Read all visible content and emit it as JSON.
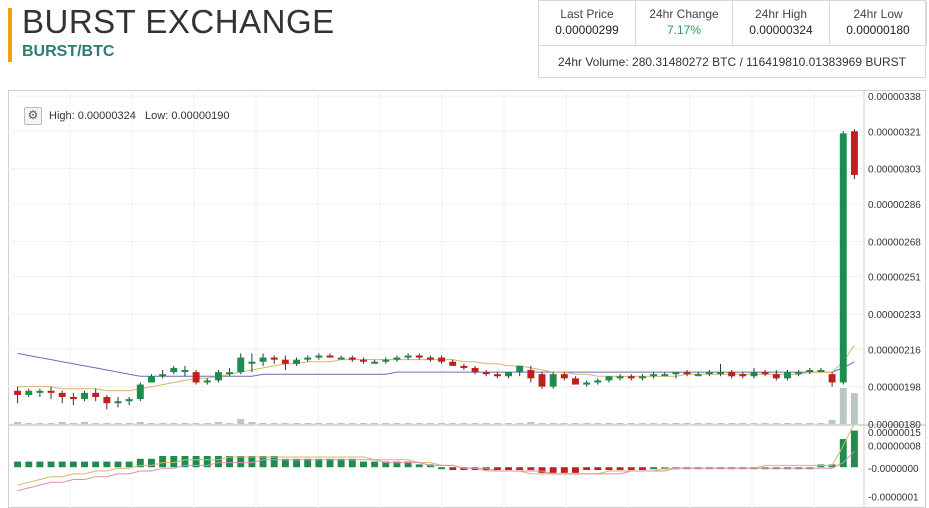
{
  "header": {
    "title": "BURST EXCHANGE",
    "pair": "BURST/BTC"
  },
  "stats": {
    "last_price_label": "Last Price",
    "last_price": "0.00000299",
    "change_label": "24hr Change",
    "change": "7.17%",
    "high_label": "24hr High",
    "high": "0.00000324",
    "low_label": "24hr Low",
    "low": "0.00000180",
    "volume_label": "24hr Volume:",
    "volume": "280.31480272 BTC / 116419810.01383969 BURST"
  },
  "chart_info": {
    "gear_icon": "gear-icon",
    "high_label": "High:",
    "high": "0.00000324",
    "low_label": "Low:",
    "low": "0.00000190"
  },
  "colors": {
    "up": "#1e8c4e",
    "down": "#c0201c",
    "volume": "#b9c6c4",
    "ma_slow": "#6b6fb3",
    "ma_fast": "#d9b46a",
    "macd_signal": "#d98fb0"
  },
  "chart_data": {
    "type": "candlestick",
    "y_ticks": [
      "0.00000180",
      "0.00000198",
      "0.00000216",
      "0.00000233",
      "0.00000251",
      "0.00000268",
      "0.00000286",
      "0.00000303",
      "0.00000321",
      "0.00000338"
    ],
    "ylim": [
      1.8e-06,
      3.38e-06
    ],
    "indicator_ticks": [
      "0.00000015",
      "0.00000008",
      "-0.0000000",
      "-0.0000001"
    ],
    "indicator_ylim": [
      -1.2e-07,
      1.5e-07
    ],
    "candles": [
      {
        "o": 196,
        "h": 198,
        "l": 190,
        "c": 194
      },
      {
        "o": 194,
        "h": 197,
        "l": 193,
        "c": 196
      },
      {
        "o": 195,
        "h": 197,
        "l": 193,
        "c": 196
      },
      {
        "o": 196,
        "h": 198,
        "l": 192,
        "c": 195
      },
      {
        "o": 195,
        "h": 196,
        "l": 190,
        "c": 193
      },
      {
        "o": 193,
        "h": 195,
        "l": 189,
        "c": 192
      },
      {
        "o": 192,
        "h": 196,
        "l": 191,
        "c": 195
      },
      {
        "o": 195,
        "h": 197,
        "l": 191,
        "c": 193
      },
      {
        "o": 193,
        "h": 194,
        "l": 187,
        "c": 190
      },
      {
        "o": 190,
        "h": 193,
        "l": 188,
        "c": 191
      },
      {
        "o": 191,
        "h": 193,
        "l": 189,
        "c": 192
      },
      {
        "o": 192,
        "h": 200,
        "l": 191,
        "c": 199
      },
      {
        "o": 200,
        "h": 204,
        "l": 200,
        "c": 203
      },
      {
        "o": 203,
        "h": 206,
        "l": 202,
        "c": 204
      },
      {
        "o": 205,
        "h": 208,
        "l": 204,
        "c": 207
      },
      {
        "o": 206,
        "h": 208,
        "l": 203,
        "c": 206
      },
      {
        "o": 205,
        "h": 206,
        "l": 199,
        "c": 200
      },
      {
        "o": 200,
        "h": 202,
        "l": 199,
        "c": 201
      },
      {
        "o": 201,
        "h": 206,
        "l": 200,
        "c": 205
      },
      {
        "o": 205,
        "h": 207,
        "l": 203,
        "c": 205
      },
      {
        "o": 205,
        "h": 214,
        "l": 204,
        "c": 212
      },
      {
        "o": 209,
        "h": 214,
        "l": 205,
        "c": 210
      },
      {
        "o": 210,
        "h": 214,
        "l": 208,
        "c": 212
      },
      {
        "o": 212,
        "h": 213,
        "l": 209,
        "c": 211
      },
      {
        "o": 211,
        "h": 213,
        "l": 206,
        "c": 209
      },
      {
        "o": 209,
        "h": 212,
        "l": 208,
        "c": 211
      },
      {
        "o": 211,
        "h": 213,
        "l": 210,
        "c": 212
      },
      {
        "o": 212,
        "h": 214,
        "l": 211,
        "c": 213
      },
      {
        "o": 213,
        "h": 214,
        "l": 212,
        "c": 212
      },
      {
        "o": 212,
        "h": 213,
        "l": 211,
        "c": 212
      },
      {
        "o": 212,
        "h": 213,
        "l": 210,
        "c": 211
      },
      {
        "o": 211,
        "h": 212,
        "l": 209,
        "c": 210
      },
      {
        "o": 210,
        "h": 211,
        "l": 209,
        "c": 210
      },
      {
        "o": 210,
        "h": 212,
        "l": 209,
        "c": 211
      },
      {
        "o": 211,
        "h": 213,
        "l": 210,
        "c": 212
      },
      {
        "o": 212,
        "h": 214,
        "l": 211,
        "c": 213
      },
      {
        "o": 213,
        "h": 214,
        "l": 211,
        "c": 212
      },
      {
        "o": 212,
        "h": 213,
        "l": 210,
        "c": 211
      },
      {
        "o": 212,
        "h": 213,
        "l": 209,
        "c": 210
      },
      {
        "o": 210,
        "h": 211,
        "l": 208,
        "c": 208
      },
      {
        "o": 208,
        "h": 209,
        "l": 206,
        "c": 207
      },
      {
        "o": 207,
        "h": 208,
        "l": 204,
        "c": 205
      },
      {
        "o": 205,
        "h": 206,
        "l": 203,
        "c": 204
      },
      {
        "o": 204,
        "h": 205,
        "l": 202,
        "c": 203
      },
      {
        "o": 203,
        "h": 205,
        "l": 202,
        "c": 205
      },
      {
        "o": 205,
        "h": 208,
        "l": 203,
        "c": 208
      },
      {
        "o": 206,
        "h": 208,
        "l": 200,
        "c": 202
      },
      {
        "o": 204,
        "h": 205,
        "l": 197,
        "c": 198
      },
      {
        "o": 198,
        "h": 205,
        "l": 197,
        "c": 204
      },
      {
        "o": 204,
        "h": 205,
        "l": 201,
        "c": 202
      },
      {
        "o": 202,
        "h": 203,
        "l": 199,
        "c": 199
      },
      {
        "o": 199,
        "h": 201,
        "l": 198,
        "c": 200
      },
      {
        "o": 200,
        "h": 202,
        "l": 199,
        "c": 201
      },
      {
        "o": 201,
        "h": 203,
        "l": 200,
        "c": 203
      },
      {
        "o": 202,
        "h": 204,
        "l": 201,
        "c": 203
      },
      {
        "o": 203,
        "h": 204,
        "l": 201,
        "c": 202
      },
      {
        "o": 202,
        "h": 204,
        "l": 201,
        "c": 203
      },
      {
        "o": 203,
        "h": 205,
        "l": 202,
        "c": 204
      },
      {
        "o": 204,
        "h": 205,
        "l": 203,
        "c": 204
      },
      {
        "o": 204,
        "h": 205,
        "l": 202,
        "c": 205
      },
      {
        "o": 205,
        "h": 206,
        "l": 203,
        "c": 204
      },
      {
        "o": 204,
        "h": 205,
        "l": 203,
        "c": 204
      },
      {
        "o": 204,
        "h": 206,
        "l": 203,
        "c": 205
      },
      {
        "o": 205,
        "h": 209,
        "l": 203,
        "c": 205
      },
      {
        "o": 205,
        "h": 206,
        "l": 202,
        "c": 203
      },
      {
        "o": 204,
        "h": 205,
        "l": 202,
        "c": 203
      },
      {
        "o": 203,
        "h": 207,
        "l": 202,
        "c": 205
      },
      {
        "o": 205,
        "h": 206,
        "l": 203,
        "c": 204
      },
      {
        "o": 204,
        "h": 206,
        "l": 201,
        "c": 202
      },
      {
        "o": 202,
        "h": 206,
        "l": 201,
        "c": 205
      },
      {
        "o": 205,
        "h": 206,
        "l": 203,
        "c": 205
      },
      {
        "o": 205,
        "h": 207,
        "l": 204,
        "c": 206
      },
      {
        "o": 206,
        "h": 207,
        "l": 205,
        "c": 206
      },
      {
        "o": 204,
        "h": 205,
        "l": 198,
        "c": 200
      },
      {
        "o": 200,
        "h": 321,
        "l": 199,
        "c": 320
      },
      {
        "o": 321,
        "h": 322,
        "l": 298,
        "c": 300
      }
    ],
    "volumes": [
      2,
      1,
      1,
      1,
      2,
      1,
      2,
      1,
      1,
      1,
      1,
      2,
      1,
      1,
      1,
      1,
      1,
      1,
      2,
      1,
      5,
      2,
      1,
      1,
      1,
      1,
      1,
      1,
      1,
      1,
      1,
      1,
      1,
      1,
      1,
      1,
      1,
      1,
      1,
      1,
      1,
      1,
      1,
      1,
      1,
      1,
      2,
      1,
      1,
      1,
      1,
      1,
      1,
      1,
      1,
      1,
      1,
      1,
      1,
      1,
      1,
      1,
      1,
      1,
      1,
      1,
      1,
      1,
      1,
      1,
      1,
      1,
      1,
      4,
      35,
      30
    ],
    "ma_slow": [
      214,
      213,
      212,
      211,
      210,
      209,
      208,
      207,
      206,
      205,
      204,
      203,
      203,
      203,
      203,
      203,
      203,
      203,
      203,
      203,
      203,
      203,
      204,
      204,
      204,
      204,
      204,
      204,
      204,
      204,
      204,
      204,
      204,
      204,
      205,
      205,
      205,
      205,
      205,
      205,
      205,
      205,
      205,
      205,
      205,
      205,
      205,
      205,
      205,
      205,
      205,
      205,
      205,
      205,
      205,
      205,
      205,
      205,
      205,
      205,
      205,
      205,
      205,
      205,
      205,
      205,
      205,
      205,
      205,
      205,
      205,
      205,
      205,
      205,
      207,
      210
    ],
    "ma_fast": [
      198,
      198,
      198,
      198,
      197,
      197,
      197,
      197,
      196,
      196,
      196,
      197,
      198,
      199,
      200,
      201,
      202,
      202,
      203,
      204,
      205,
      206,
      207,
      208,
      209,
      209,
      210,
      210,
      210,
      211,
      211,
      211,
      211,
      211,
      211,
      211,
      211,
      211,
      211,
      211,
      210,
      210,
      209,
      209,
      208,
      208,
      207,
      206,
      205,
      205,
      204,
      204,
      203,
      203,
      203,
      203,
      203,
      203,
      203,
      203,
      204,
      204,
      204,
      204,
      204,
      204,
      204,
      204,
      204,
      204,
      204,
      205,
      205,
      205,
      210,
      218
    ],
    "macd_hist": [
      2,
      2,
      2,
      2,
      2,
      2,
      2,
      2,
      2,
      2,
      2,
      3,
      3,
      4,
      4,
      4,
      4,
      4,
      4,
      4,
      4,
      4,
      4,
      4,
      3,
      3,
      3,
      3,
      3,
      3,
      3,
      2,
      2,
      2,
      2,
      2,
      1,
      1,
      0,
      -1,
      -1,
      -1,
      -1,
      -1,
      -1,
      -1,
      -1,
      -2,
      -2,
      -2,
      -2,
      -1,
      -1,
      -1,
      -1,
      -1,
      -1,
      0,
      0,
      0,
      0,
      0,
      0,
      0,
      0,
      0,
      0,
      0,
      0,
      0,
      0,
      0,
      1,
      1,
      10,
      13
    ],
    "macd_line": [
      -6,
      -5,
      -4,
      -3,
      -3,
      -2,
      -2,
      -1,
      -1,
      0,
      0,
      1,
      1,
      2,
      2,
      3,
      3,
      3,
      3,
      4,
      4,
      4,
      4,
      4,
      4,
      4,
      4,
      4,
      4,
      4,
      4,
      4,
      3,
      3,
      3,
      3,
      2,
      2,
      1,
      1,
      0,
      0,
      -1,
      -1,
      -1,
      -1,
      -2,
      -2,
      -2,
      -2,
      -2,
      -2,
      -2,
      -1,
      -1,
      -1,
      -1,
      -1,
      0,
      0,
      0,
      0,
      0,
      0,
      0,
      0,
      0,
      1,
      1,
      1,
      1,
      1,
      1,
      1,
      8,
      16
    ],
    "macd_signal": [
      -8,
      -7,
      -6,
      -5,
      -5,
      -4,
      -4,
      -3,
      -3,
      -2,
      -2,
      -1,
      -1,
      0,
      0,
      1,
      1,
      1,
      2,
      2,
      2,
      2,
      3,
      3,
      3,
      3,
      3,
      3,
      3,
      3,
      3,
      3,
      3,
      2,
      2,
      2,
      2,
      1,
      1,
      1,
      0,
      0,
      0,
      -1,
      -1,
      -1,
      -1,
      -1,
      -2,
      -2,
      -2,
      -2,
      -2,
      -2,
      -2,
      -1,
      -1,
      -1,
      -1,
      0,
      0,
      0,
      0,
      0,
      0,
      0,
      0,
      0,
      0,
      0,
      0,
      0,
      0,
      0,
      2,
      6
    ]
  }
}
